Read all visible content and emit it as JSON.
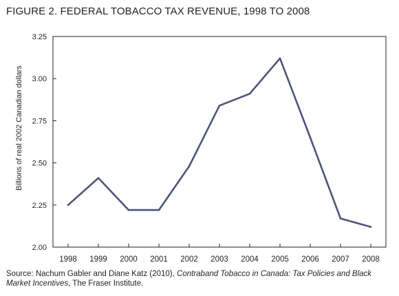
{
  "figure": {
    "title": "FIGURE 2. FEDERAL TOBACCO TAX REVENUE, 1998 TO 2008"
  },
  "source": {
    "prefix": "Source: Nachum Gabler and Diane Katz (2010), ",
    "italic": "Contraband Tobacco in Canada: Tax Policies and Black Market Incentives",
    "suffix": ", The Fraser Institute."
  },
  "colors": {
    "line": "#4a5577",
    "axis": "#231f20",
    "text": "#231f20"
  },
  "chart_data": {
    "type": "line",
    "title": "FIGURE 2. FEDERAL TOBACCO TAX REVENUE, 1998 TO 2008",
    "xlabel": "",
    "ylabel": "Billions of real 2002 Canadian dollars",
    "categories": [
      "1998",
      "1999",
      "2000",
      "2001",
      "2002",
      "2003",
      "2004",
      "2005",
      "2006",
      "2007",
      "2008"
    ],
    "series": [
      {
        "values": [
          2.25,
          2.41,
          2.22,
          2.22,
          2.48,
          2.84,
          2.91,
          3.12,
          2.65,
          2.17,
          2.12
        ]
      }
    ],
    "ylim": [
      2.0,
      3.25
    ],
    "yticks": [
      "2.00",
      "2.25",
      "2.50",
      "2.75",
      "3.00",
      "3.25"
    ],
    "grid": false,
    "legend": "none"
  }
}
